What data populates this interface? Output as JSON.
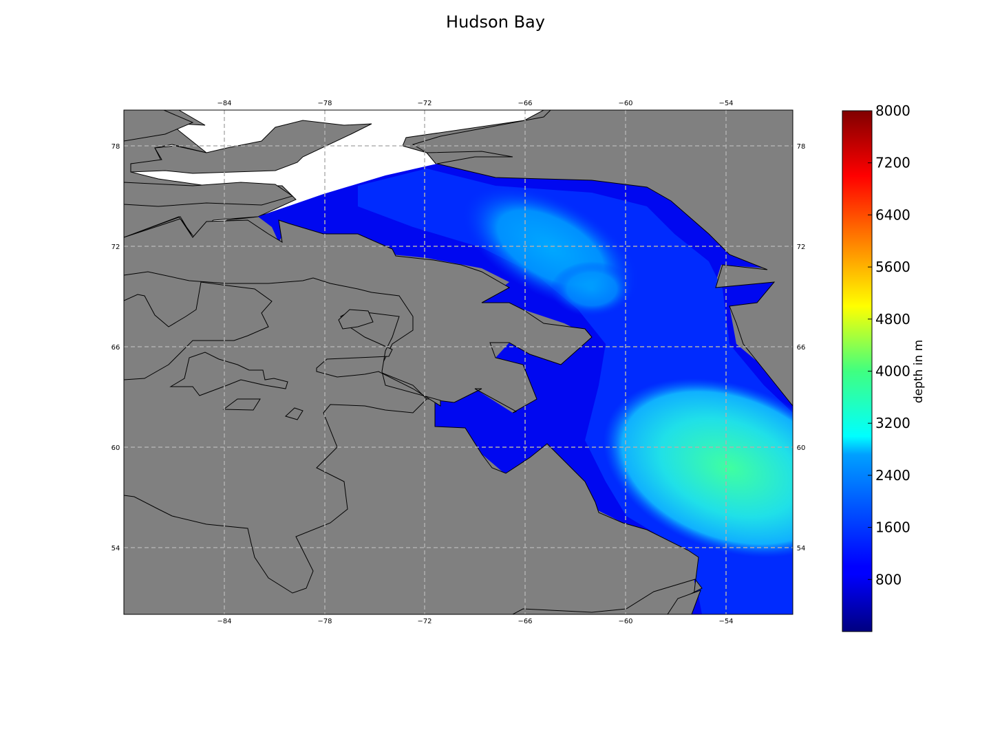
{
  "title": "Hudson Bay",
  "map": {
    "lon_ticks": [
      "−84",
      "−78",
      "−72",
      "−66",
      "−60",
      "−54"
    ],
    "lat_ticks": [
      "78",
      "72",
      "66",
      "60",
      "54"
    ],
    "land_color": "#808080",
    "outside_projection_color": "#ffffff",
    "grid_color": "#b0b0b0"
  },
  "colorbar": {
    "label": "depth in m",
    "colormap": "jet",
    "range": [
      0,
      8000
    ],
    "tick_labels": [
      "8000",
      "7200",
      "6400",
      "5600",
      "4800",
      "4000",
      "3200",
      "2400",
      "1600",
      "800"
    ]
  }
}
